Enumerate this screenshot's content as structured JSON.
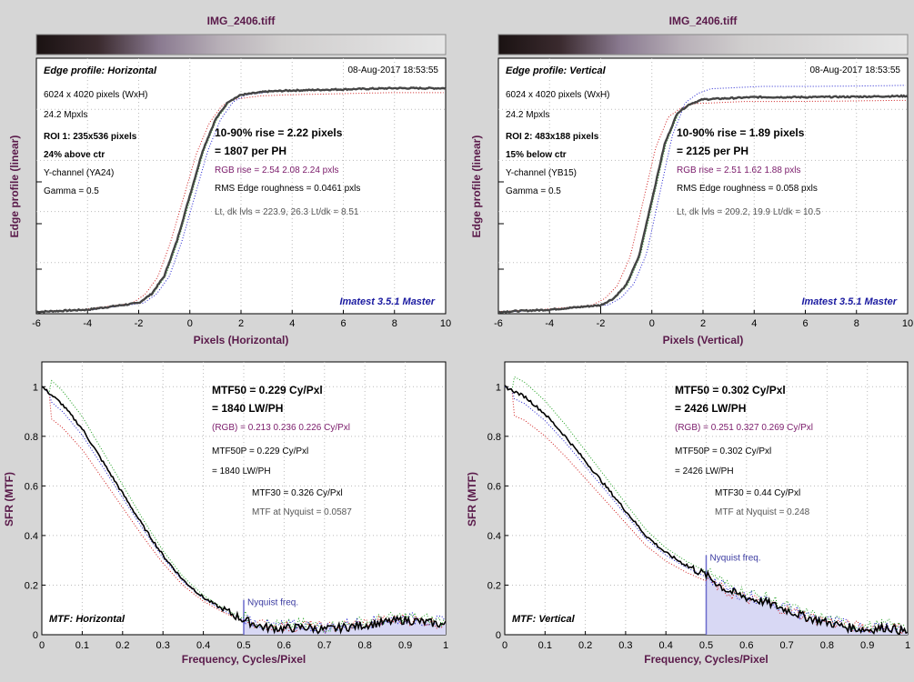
{
  "colors": {
    "background": "#d6d6d6",
    "title": "#5a1a4a",
    "rgb_text": "#7a1a6a",
    "imatest_text": "#1a1aa0",
    "nyquist_fill": "#d8d8f4",
    "nyquist_line": "#6a6acc"
  },
  "edge_panels": [
    {
      "title": "IMG_2406.tiff",
      "heading": "Edge profile: Horizontal",
      "timestamp": "08-Aug-2017 18:53:55",
      "pixels": "6024 x 4020 pixels (WxH)",
      "mpxls": "24.2 Mpxls",
      "roi": "ROI 1:  235x536 pixels",
      "roi_pos": "24% above ctr",
      "channel": "Y-channel  (YA24)",
      "gamma": "Gamma = 0.5",
      "rise": "10-90% rise = 2.22 pixels",
      "per_ph": "= 1807 per PH",
      "rgb_rise": "RGB rise = 2.54  2.08  2.24 pxls",
      "roughness": "RMS Edge roughness = 0.0461 pxls",
      "levels": "Lt, dk lvls = 223.9, 26.3   Lt/dk = 8.51",
      "watermark": "Imatest 3.5.1 Master",
      "ylabel": "Edge profile (linear)",
      "xlabel": "Pixels (Horizontal)"
    },
    {
      "title": "IMG_2406.tiff",
      "heading": "Edge profile: Vertical",
      "timestamp": "08-Aug-2017 18:53:55",
      "pixels": "6024 x 4020 pixels (WxH)",
      "mpxls": "24.2 Mpxls",
      "roi": "ROI 2:  483x188 pixels",
      "roi_pos": "15% below ctr",
      "channel": "Y-channel  (YB15)",
      "gamma": "Gamma = 0.5",
      "rise": "10-90% rise = 1.89 pixels",
      "per_ph": "= 2125 per PH",
      "rgb_rise": "RGB rise = 2.51  1.62  1.88 pxls",
      "roughness": "RMS Edge roughness = 0.058 pxls",
      "levels": "Lt, dk lvls = 209.2, 19.9   Lt/dk = 10.5",
      "watermark": "Imatest 3.5.1 Master",
      "ylabel": "Edge profile (linear)",
      "xlabel": "Pixels (Vertical)"
    }
  ],
  "mtf_panels": [
    {
      "mtf50": "MTF50 = 0.229 Cy/Pxl",
      "lwph": "= 1840 LW/PH",
      "rgb": "(RGB) = 0.213  0.236  0.226 Cy/Pxl",
      "mtf50p": "MTF50P = 0.229 Cy/Pxl",
      "mtf50p_lw": "= 1840 LW/PH",
      "mtf30": "MTF30 = 0.326 Cy/Pxl",
      "nyquist_val": "MTF at Nyquist = 0.0587",
      "nyquist_label": "Nyquist freq.",
      "label": "MTF: Horizontal",
      "ylabel": "SFR (MTF)",
      "xlabel": "Frequency, Cycles/Pixel"
    },
    {
      "mtf50": "MTF50 = 0.302 Cy/Pxl",
      "lwph": "= 2426 LW/PH",
      "rgb": "(RGB) = 0.251  0.327  0.269 Cy/Pxl",
      "mtf50p": "MTF50P = 0.302 Cy/Pxl",
      "mtf50p_lw": "= 2426 LW/PH",
      "mtf30": "MTF30 = 0.44 Cy/Pxl",
      "nyquist_val": "MTF at Nyquist = 0.248",
      "nyquist_label": "Nyquist freq.",
      "label": "MTF: Vertical",
      "ylabel": "SFR (MTF)",
      "xlabel": "Frequency, Cycles/Pixel"
    }
  ],
  "chart_data": [
    {
      "type": "line",
      "title": "IMG_2406.tiff",
      "xlabel": "Pixels (Horizontal)",
      "ylabel": "Edge profile (linear)",
      "xlim": [
        -6,
        10
      ],
      "xticks": [
        "-6",
        "-4",
        "-2",
        "0",
        "2",
        "4",
        "6",
        "8",
        "10"
      ],
      "x": [
        -6,
        -4,
        -2,
        -1.5,
        -1,
        -0.5,
        0,
        0.5,
        1,
        1.5,
        2,
        3,
        4,
        6,
        8,
        10
      ],
      "series": [
        {
          "values": [
            0.0,
            0.01,
            0.04,
            0.08,
            0.16,
            0.32,
            0.52,
            0.72,
            0.86,
            0.94,
            0.97,
            0.985,
            0.99,
            0.995,
            1.0,
            1.0
          ]
        }
      ]
    },
    {
      "type": "line",
      "title": "IMG_2406.tiff",
      "xlabel": "Pixels (Vertical)",
      "ylabel": "Edge profile (linear)",
      "xlim": [
        -6,
        10
      ],
      "xticks": [
        "-6",
        "-4",
        "-2",
        "0",
        "2",
        "4",
        "6",
        "8",
        "10"
      ],
      "x": [
        -6,
        -4,
        -2,
        -1.5,
        -1,
        -0.5,
        0,
        0.5,
        1,
        1.5,
        2,
        3,
        4,
        6,
        8,
        10
      ],
      "series": [
        {
          "values": [
            0.0,
            0.01,
            0.03,
            0.06,
            0.12,
            0.25,
            0.5,
            0.75,
            0.89,
            0.93,
            0.95,
            0.955,
            0.96,
            0.96,
            0.962,
            0.965
          ]
        }
      ]
    },
    {
      "type": "line",
      "xlabel": "Frequency, Cycles/Pixel",
      "ylabel": "SFR (MTF)",
      "xlim": [
        0,
        1
      ],
      "ylim": [
        0,
        1.1
      ],
      "xticks": [
        "0",
        "0.1",
        "0.2",
        "0.3",
        "0.4",
        "0.5",
        "0.6",
        "0.7",
        "0.8",
        "0.9",
        "1"
      ],
      "yticks": [
        "0",
        "0.2",
        "0.4",
        "0.6",
        "0.8",
        "1"
      ],
      "x": [
        0,
        0.05,
        0.1,
        0.15,
        0.2,
        0.25,
        0.3,
        0.35,
        0.4,
        0.45,
        0.5,
        0.55,
        0.6,
        0.65,
        0.7,
        0.75,
        0.8,
        0.85,
        0.9,
        0.95,
        1.0
      ],
      "series": [
        {
          "values": [
            1.0,
            0.93,
            0.83,
            0.7,
            0.57,
            0.44,
            0.32,
            0.22,
            0.15,
            0.1,
            0.06,
            0.03,
            0.025,
            0.03,
            0.02,
            0.03,
            0.04,
            0.05,
            0.06,
            0.05,
            0.04
          ]
        }
      ]
    },
    {
      "type": "line",
      "xlabel": "Frequency, Cycles/Pixel",
      "ylabel": "SFR (MTF)",
      "xlim": [
        0,
        1
      ],
      "ylim": [
        0,
        1.1
      ],
      "xticks": [
        "0",
        "0.1",
        "0.2",
        "0.3",
        "0.4",
        "0.5",
        "0.6",
        "0.7",
        "0.8",
        "0.9",
        "1"
      ],
      "yticks": [
        "0",
        "0.2",
        "0.4",
        "0.6",
        "0.8",
        "1"
      ],
      "x": [
        0,
        0.05,
        0.1,
        0.15,
        0.2,
        0.25,
        0.3,
        0.35,
        0.4,
        0.45,
        0.5,
        0.55,
        0.6,
        0.65,
        0.7,
        0.75,
        0.8,
        0.85,
        0.9,
        0.95,
        1.0
      ],
      "series": [
        {
          "values": [
            1.0,
            0.96,
            0.89,
            0.8,
            0.7,
            0.6,
            0.5,
            0.4,
            0.33,
            0.28,
            0.24,
            0.18,
            0.15,
            0.13,
            0.1,
            0.07,
            0.05,
            0.03,
            0.02,
            0.03,
            0.01
          ]
        }
      ]
    }
  ]
}
